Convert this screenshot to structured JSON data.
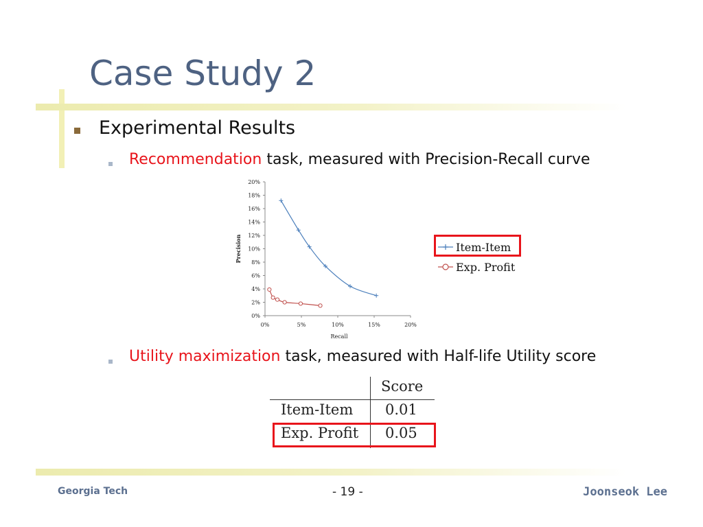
{
  "slide": {
    "title": "Case Study 2",
    "bullet1": "Experimental Results",
    "sub1": {
      "highlight": "Recommendation",
      "rest": " task, measured with Precision-Recall curve"
    },
    "sub2": {
      "highlight": "Utility maximization",
      "rest": " task, measured with Half-life Utility score"
    }
  },
  "chart_data": {
    "type": "line",
    "xlabel": "Recall",
    "ylabel": "Precision",
    "xlim": [
      0,
      20
    ],
    "ylim": [
      0,
      20
    ],
    "x_ticks": [
      "0%",
      "5%",
      "10%",
      "15%",
      "20%"
    ],
    "y_ticks": [
      "0%",
      "2%",
      "4%",
      "6%",
      "8%",
      "10%",
      "12%",
      "14%",
      "16%",
      "18%",
      "20%"
    ],
    "grid": false,
    "legend_position": "right",
    "series": [
      {
        "name": "Item-Item",
        "color": "#4a7ebb",
        "marker": "plus",
        "points": [
          [
            2.2,
            17.2
          ],
          [
            4.6,
            12.8
          ],
          [
            6.1,
            10.3
          ],
          [
            8.3,
            7.4
          ],
          [
            11.7,
            4.4
          ],
          [
            15.3,
            3.0
          ]
        ]
      },
      {
        "name": "Exp. Profit",
        "color": "#c0504d",
        "marker": "circle",
        "points": [
          [
            0.6,
            3.9
          ],
          [
            1.1,
            2.7
          ],
          [
            1.7,
            2.4
          ],
          [
            2.7,
            2.0
          ],
          [
            4.9,
            1.8
          ],
          [
            7.6,
            1.5
          ]
        ]
      }
    ]
  },
  "score_table": {
    "header": [
      "",
      "Score"
    ],
    "rows": [
      [
        "Item-Item",
        "0.01"
      ],
      [
        "Exp. Profit",
        "0.05"
      ]
    ]
  },
  "footer": {
    "left": "Georgia Tech",
    "center": "- 19 -",
    "right": "Joonseok Lee"
  },
  "colors": {
    "title": "#4e6282",
    "highlight": "#e8141b",
    "accent_bar": "#ecebae",
    "footer": "#5b6f8f"
  }
}
